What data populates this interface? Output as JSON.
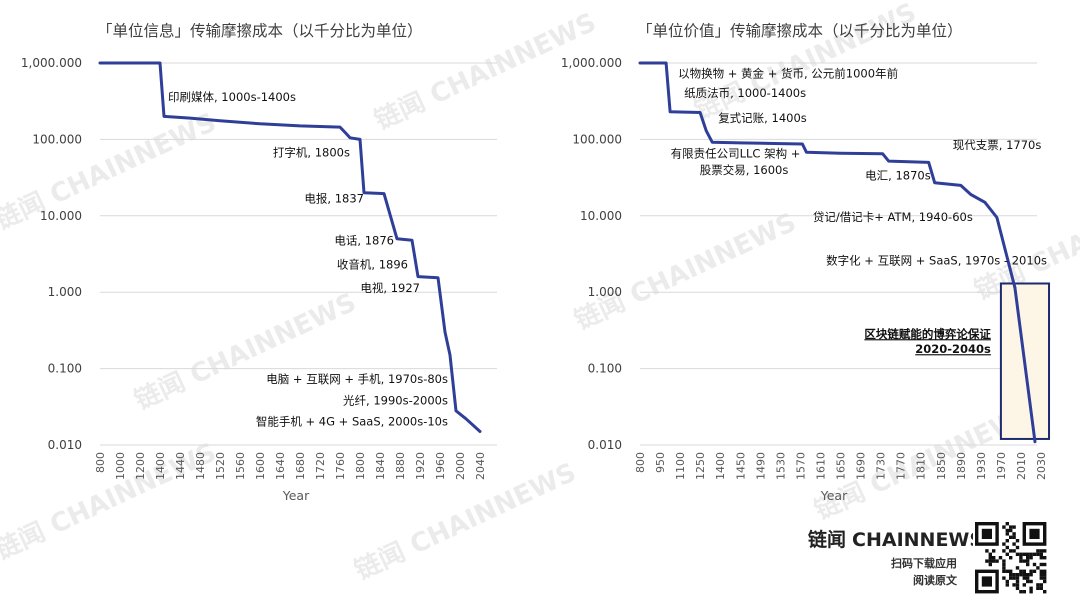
{
  "chart_data": [
    {
      "type": "line",
      "title": "「单位信息」传输摩擦成本（以千分比为单位）",
      "xlabel": "Year",
      "ylabel": "",
      "y_scale": "log",
      "ylim": [
        0.01,
        1000
      ],
      "y_ticks": [
        "1,000.000",
        "100.000",
        "10.000",
        "1.000",
        "0.100",
        "0.010"
      ],
      "y_tick_values": [
        1000,
        100,
        10,
        1,
        0.1,
        0.01
      ],
      "x_ticks": [
        "800",
        "1000",
        "1200",
        "1400",
        "1440",
        "1480",
        "1520",
        "1560",
        "1600",
        "1640",
        "1680",
        "1720",
        "1760",
        "1800",
        "1840",
        "1880",
        "1920",
        "1960",
        "2000",
        "2040"
      ],
      "grid": true,
      "legend": "none",
      "series": [
        {
          "color": "#2f3f98",
          "points": [
            {
              "x": 0,
              "y": 1000
            },
            {
              "x": 3,
              "y": 1000
            },
            {
              "x": 3.2,
              "y": 200
            },
            {
              "x": 4.5,
              "y": 190
            },
            {
              "x": 6,
              "y": 175
            },
            {
              "x": 8,
              "y": 160
            },
            {
              "x": 10,
              "y": 150
            },
            {
              "x": 12,
              "y": 145
            },
            {
              "x": 12.3,
              "y": 120
            },
            {
              "x": 12.5,
              "y": 105
            },
            {
              "x": 13,
              "y": 100
            },
            {
              "x": 13.2,
              "y": 20
            },
            {
              "x": 14.2,
              "y": 19.5
            },
            {
              "x": 14.85,
              "y": 5
            },
            {
              "x": 15.6,
              "y": 4.8
            },
            {
              "x": 15.9,
              "y": 1.6
            },
            {
              "x": 16.9,
              "y": 1.55
            },
            {
              "x": 17.25,
              "y": 0.3
            },
            {
              "x": 17.5,
              "y": 0.15
            },
            {
              "x": 17.8,
              "y": 0.028
            },
            {
              "x": 18.3,
              "y": 0.022
            },
            {
              "x": 19,
              "y": 0.015
            }
          ]
        }
      ],
      "annotations": [
        {
          "text": "印刷媒体, 1000s-1400s",
          "x": 3.4,
          "y": 320,
          "anchor": "start"
        },
        {
          "text": "打字机, 1800s",
          "x": 12.5,
          "y": 60,
          "anchor": "end"
        },
        {
          "text": "电报, 1837",
          "x": 13.2,
          "y": 15,
          "anchor": "end"
        },
        {
          "text": "电话, 1876",
          "x": 14.7,
          "y": 4.2,
          "anchor": "end"
        },
        {
          "text": "收音机, 1896",
          "x": 15.4,
          "y": 2.05,
          "anchor": "end"
        },
        {
          "text": "电视, 1927",
          "x": 16.0,
          "y": 1.0,
          "anchor": "end"
        },
        {
          "text": "电脑 + 互联网 + 手机, 1970s-80s",
          "x": 17.4,
          "y": 0.065,
          "anchor": "end"
        },
        {
          "text": "光纤, 1990s-2000s",
          "x": 17.4,
          "y": 0.034,
          "anchor": "end"
        },
        {
          "text": "智能手机 + 4G + SaaS, 2000s-10s",
          "x": 17.4,
          "y": 0.018,
          "anchor": "end"
        }
      ]
    },
    {
      "type": "line",
      "title": "「单位价值」传输摩擦成本（以千分比为单位）",
      "xlabel": "Year",
      "ylabel": "",
      "y_scale": "log",
      "ylim": [
        0.01,
        1000
      ],
      "y_ticks": [
        "1,000.000",
        "100.000",
        "10.000",
        "1.000",
        "0.100",
        "0.010"
      ],
      "y_tick_values": [
        1000,
        100,
        10,
        1,
        0.1,
        0.01
      ],
      "x_ticks": [
        "800",
        "950",
        "1100",
        "1250",
        "1400",
        "1450",
        "1490",
        "1530",
        "1570",
        "1610",
        "1650",
        "1690",
        "1730",
        "1770",
        "1810",
        "1850",
        "1890",
        "1930",
        "1970",
        "2010",
        "2030"
      ],
      "grid": true,
      "legend": "none",
      "series": [
        {
          "color": "#2f3f98",
          "points": [
            {
              "x": 0,
              "y": 1000
            },
            {
              "x": 1.3,
              "y": 1000
            },
            {
              "x": 1.5,
              "y": 230
            },
            {
              "x": 3.0,
              "y": 225
            },
            {
              "x": 3.3,
              "y": 130
            },
            {
              "x": 3.6,
              "y": 92
            },
            {
              "x": 5.0,
              "y": 90
            },
            {
              "x": 7.0,
              "y": 88
            },
            {
              "x": 8.1,
              "y": 87
            },
            {
              "x": 8.3,
              "y": 68
            },
            {
              "x": 10.0,
              "y": 66
            },
            {
              "x": 12.1,
              "y": 65
            },
            {
              "x": 12.4,
              "y": 52
            },
            {
              "x": 14.4,
              "y": 50
            },
            {
              "x": 14.7,
              "y": 27
            },
            {
              "x": 16.0,
              "y": 25
            },
            {
              "x": 16.5,
              "y": 19
            },
            {
              "x": 17.2,
              "y": 15
            },
            {
              "x": 17.8,
              "y": 9.5
            },
            {
              "x": 18.7,
              "y": 1.15
            }
          ]
        },
        {
          "name": "",
          "color": "#a9adc8",
          "points": [
            {
              "x": 18.7,
              "y": 1.15
            },
            {
              "x": 19.7,
              "y": 0.011
            }
          ]
        }
      ],
      "highlight_box": {
        "label_line1": "区块链赋能的博弈论保证",
        "label_line2": "2020-2040s",
        "x_range": [
          18.0,
          20.4
        ],
        "y_range": [
          0.012,
          1.3
        ]
      },
      "annotations": [
        {
          "text": "以物换物 + 黄金 + 货币, 公元前1000年前",
          "x": 1.9,
          "y": 650,
          "anchor": "start"
        },
        {
          "text": "纸质法币, 1000-1400s",
          "x": 2.2,
          "y": 360,
          "anchor": "start"
        },
        {
          "text": "复式记账, 1400s",
          "x": 3.9,
          "y": 170,
          "anchor": "start"
        },
        {
          "text": "有限责任公司LLC 架构  +",
          "x": 8.0,
          "y": 58,
          "anchor": "end"
        },
        {
          "text": "股票交易, 1600s",
          "x": 7.4,
          "y": 35,
          "anchor": "end"
        },
        {
          "text": "现代支票, 1770s",
          "x": 15.6,
          "y": 75,
          "anchor": "start"
        },
        {
          "text": "电汇, 1870s",
          "x": 14.5,
          "y": 30,
          "anchor": "end"
        },
        {
          "text": "贷记/借记卡+ ATM, 1940-60s",
          "x": 16.6,
          "y": 8.5,
          "anchor": "end"
        },
        {
          "text": "数字化 + 互联网 + SaaS, 1970s - 2010s",
          "x": 20.3,
          "y": 2.3,
          "anchor": "end"
        }
      ]
    }
  ],
  "watermark": {
    "text": "链闻 CHAINNEWS"
  },
  "branding": {
    "logo_cn": "链闻",
    "logo_en": "CHAINNEWS",
    "line1": "扫码下载应用",
    "line2": "阅读原文",
    "qr_name": "qr-code-icon"
  }
}
